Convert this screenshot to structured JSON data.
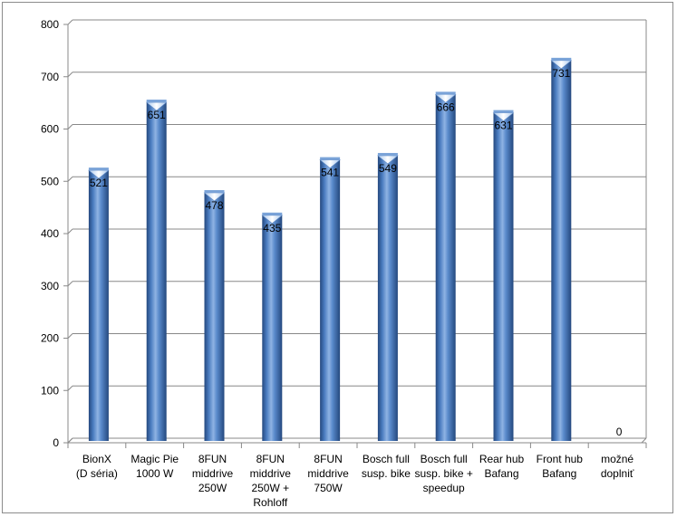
{
  "chart_data": {
    "type": "bar",
    "title": "",
    "xlabel": "",
    "ylabel": "",
    "ylim": [
      0,
      800
    ],
    "yticks": [
      0,
      100,
      200,
      300,
      400,
      500,
      600,
      700,
      800
    ],
    "grid": true,
    "legend": "none",
    "bar_color": "#3f6fb0",
    "categories": [
      [
        "BionX",
        "(D séria)"
      ],
      [
        "Magic Pie",
        "1000 W"
      ],
      [
        "8FUN",
        "middrive",
        "250W"
      ],
      [
        "8FUN",
        "middrive",
        "250W +",
        "Rohloff"
      ],
      [
        "8FUN",
        "middrive",
        "750W"
      ],
      [
        "Bosch full",
        "susp. bike"
      ],
      [
        "Bosch full",
        "susp. bike +",
        "speedup"
      ],
      [
        "Rear hub",
        "Bafang"
      ],
      [
        "Front hub",
        "Bafang"
      ],
      [
        "možné",
        "doplniť"
      ]
    ],
    "values": [
      521,
      651,
      478,
      435,
      541,
      549,
      666,
      631,
      731,
      0
    ],
    "data_labels": [
      "521",
      "651",
      "478",
      "435",
      "541",
      "549",
      "666",
      "631",
      "731",
      "0"
    ]
  }
}
